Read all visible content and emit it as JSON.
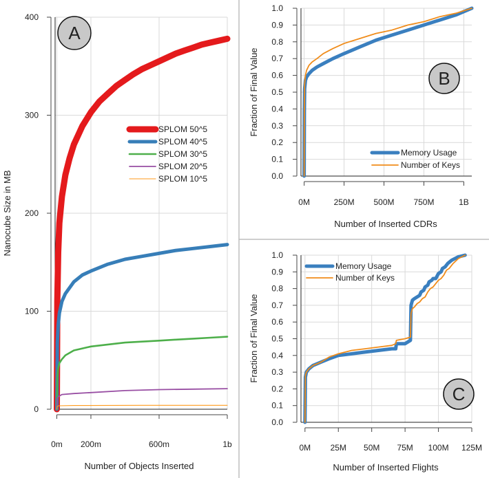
{
  "chart_data": [
    {
      "type": "line",
      "panel_label": "A",
      "xlabel": "Number of Objects Inserted",
      "ylabel": "Nanocube Size in MB",
      "xlim": [
        -10,
        1000
      ],
      "ylim": [
        0,
        400
      ],
      "x_ticks": [
        0,
        200,
        600,
        1000
      ],
      "x_tick_labels": [
        "0m",
        "200m",
        "600m",
        "1b"
      ],
      "y_ticks": [
        0,
        100,
        200,
        300,
        400
      ],
      "y_tick_labels": [
        "0",
        "100",
        "200",
        "300",
        "400"
      ],
      "grid": true,
      "legend_position": "right",
      "series": [
        {
          "name": "SPLOM 50^5",
          "color": "#e41a1c",
          "style": "thick",
          "x": [
            0,
            3,
            8,
            15,
            30,
            50,
            75,
            100,
            150,
            200,
            250,
            300,
            350,
            400,
            450,
            500,
            550,
            600,
            650,
            700,
            750,
            800,
            850,
            900,
            950,
            1000
          ],
          "y": [
            0,
            110,
            160,
            190,
            217,
            239,
            256,
            270,
            289,
            303,
            314,
            322,
            330,
            336,
            342,
            347,
            351,
            355,
            359,
            363,
            366,
            369,
            372,
            374,
            376,
            378
          ]
        },
        {
          "name": "SPLOM 40^5",
          "color": "#377eb8",
          "style": "medium",
          "x": [
            0,
            3,
            8,
            15,
            30,
            50,
            100,
            150,
            200,
            300,
            400,
            500,
            600,
            700,
            800,
            900,
            1000
          ],
          "y": [
            0,
            68,
            86,
            98,
            110,
            118,
            130,
            137,
            141,
            148,
            153,
            156,
            159,
            162,
            164,
            166,
            168
          ]
        },
        {
          "name": "SPLOM 30^5",
          "color": "#4daf4a",
          "style": "normal",
          "x": [
            0,
            3,
            8,
            15,
            30,
            50,
            100,
            200,
            300,
            400,
            500,
            600,
            700,
            800,
            900,
            1000
          ],
          "y": [
            0,
            33,
            42,
            47,
            51,
            55,
            60,
            64,
            66,
            68,
            69,
            70,
            71,
            72,
            73,
            74
          ]
        },
        {
          "name": "SPLOM 20^5",
          "color": "#984ea3",
          "style": "thin",
          "x": [
            0,
            3,
            10,
            30,
            100,
            200,
            400,
            600,
            800,
            1000
          ],
          "y": [
            0,
            11,
            13,
            15,
            16,
            17,
            19,
            20,
            20.5,
            21
          ]
        },
        {
          "name": "SPLOM 10^5",
          "color": "#ff9a1a",
          "style": "hair",
          "x": [
            0,
            3,
            10,
            100,
            500,
            1000
          ],
          "y": [
            0,
            3,
            3.5,
            3.8,
            4,
            4
          ]
        }
      ]
    },
    {
      "type": "line",
      "panel_label": "B",
      "xlabel": "Number of Inserted CDRs",
      "ylabel": "Fraction of Final Value",
      "xlim": [
        -20,
        1050
      ],
      "ylim": [
        0,
        1.0
      ],
      "x_ticks": [
        0,
        250,
        500,
        750,
        1000
      ],
      "x_tick_labels": [
        "0M",
        "250M",
        "500M",
        "750M",
        "1B"
      ],
      "y_ticks": [
        0,
        0.1,
        0.2,
        0.3,
        0.4,
        0.5,
        0.6,
        0.7,
        0.8,
        0.9,
        1.0
      ],
      "y_tick_labels": [
        "0.0",
        "0.1",
        "0.2",
        "0.3",
        "0.4",
        "0.5",
        "0.6",
        "0.7",
        "0.8",
        "0.9",
        "1.0"
      ],
      "grid": true,
      "legend_position": "bottom-right",
      "series": [
        {
          "name": "Memory Usage",
          "color": "#3a7fbf",
          "style": "medium",
          "x": [
            0,
            1,
            3,
            8,
            15,
            30,
            50,
            80,
            120,
            180,
            250,
            350,
            450,
            550,
            650,
            750,
            850,
            950,
            1050
          ],
          "y": [
            0,
            0.38,
            0.52,
            0.57,
            0.59,
            0.61,
            0.63,
            0.65,
            0.67,
            0.7,
            0.73,
            0.77,
            0.81,
            0.84,
            0.87,
            0.9,
            0.93,
            0.96,
            1.0
          ]
        },
        {
          "name": "Number of Keys",
          "color": "#f08c1a",
          "style": "thin",
          "x": [
            0,
            1,
            3,
            8,
            15,
            30,
            50,
            80,
            120,
            180,
            250,
            350,
            450,
            550,
            650,
            750,
            850,
            950,
            1050
          ],
          "y": [
            0,
            0.4,
            0.55,
            0.6,
            0.63,
            0.66,
            0.68,
            0.7,
            0.73,
            0.76,
            0.79,
            0.82,
            0.85,
            0.87,
            0.9,
            0.92,
            0.95,
            0.97,
            1.0
          ]
        }
      ]
    },
    {
      "type": "line",
      "panel_label": "C",
      "xlabel": "Number of Inserted Flights",
      "ylabel": "Fraction of Final Value",
      "xlim": [
        -3,
        125
      ],
      "ylim": [
        0,
        1.0
      ],
      "x_ticks": [
        0,
        25,
        50,
        75,
        100,
        125
      ],
      "x_tick_labels": [
        "0M",
        "25M",
        "50M",
        "75M",
        "100M",
        "125M"
      ],
      "y_ticks": [
        0,
        0.1,
        0.2,
        0.3,
        0.4,
        0.5,
        0.6,
        0.7,
        0.8,
        0.9,
        1.0
      ],
      "y_tick_labels": [
        "0.0",
        "0.1",
        "0.2",
        "0.3",
        "0.4",
        "0.5",
        "0.6",
        "0.7",
        "0.8",
        "0.9",
        "1.0"
      ],
      "grid": true,
      "legend_position": "top-left",
      "series": [
        {
          "name": "Memory Usage",
          "color": "#3a7fbf",
          "style": "medium",
          "x": [
            0,
            0.3,
            1,
            3,
            6,
            12,
            18,
            25,
            35,
            45,
            55,
            65,
            68,
            68.5,
            75,
            79,
            79.5,
            80.5,
            82,
            84,
            86,
            87,
            89,
            90,
            92,
            93,
            95,
            96,
            98,
            100,
            102,
            103,
            105,
            107,
            110,
            115,
            120
          ],
          "y": [
            0,
            0.27,
            0.3,
            0.32,
            0.34,
            0.36,
            0.38,
            0.4,
            0.41,
            0.42,
            0.43,
            0.44,
            0.44,
            0.47,
            0.47,
            0.49,
            0.7,
            0.73,
            0.74,
            0.75,
            0.76,
            0.78,
            0.79,
            0.81,
            0.82,
            0.84,
            0.85,
            0.86,
            0.86,
            0.89,
            0.9,
            0.92,
            0.93,
            0.95,
            0.97,
            0.99,
            1.0
          ]
        },
        {
          "name": "Number of Keys",
          "color": "#f08c1a",
          "style": "thin",
          "x": [
            0,
            0.3,
            1,
            3,
            6,
            12,
            18,
            25,
            35,
            45,
            55,
            65,
            68,
            68.5,
            75,
            79,
            79.5,
            80.5,
            82,
            84,
            86,
            88,
            90,
            92,
            94,
            96,
            98,
            100,
            102,
            104,
            106,
            108,
            111,
            115,
            120
          ],
          "y": [
            0,
            0.28,
            0.3,
            0.32,
            0.34,
            0.36,
            0.39,
            0.41,
            0.43,
            0.44,
            0.45,
            0.46,
            0.47,
            0.49,
            0.5,
            0.51,
            0.65,
            0.68,
            0.69,
            0.71,
            0.72,
            0.74,
            0.75,
            0.78,
            0.8,
            0.81,
            0.83,
            0.85,
            0.86,
            0.88,
            0.91,
            0.92,
            0.95,
            0.98,
            1.0
          ]
        }
      ]
    }
  ]
}
